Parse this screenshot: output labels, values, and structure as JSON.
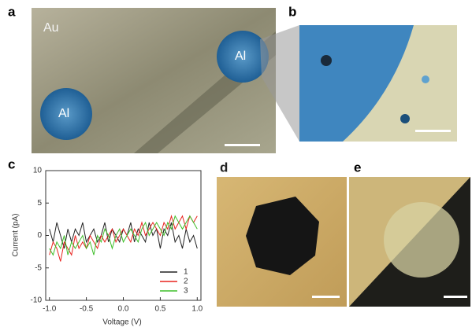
{
  "figure": {
    "panel_labels": [
      "a",
      "b",
      "c",
      "d",
      "e"
    ],
    "panel_a_texts": [
      "Au",
      "Al",
      "Al"
    ]
  },
  "chart_data": {
    "type": "line",
    "xlabel": "Voltage (V)",
    "ylabel": "Current (pA)",
    "x": [
      -1.0,
      -0.95,
      -0.9,
      -0.85,
      -0.8,
      -0.75,
      -0.7,
      -0.65,
      -0.6,
      -0.55,
      -0.5,
      -0.45,
      -0.4,
      -0.35,
      -0.3,
      -0.25,
      -0.2,
      -0.15,
      -0.1,
      -0.05,
      0.0,
      0.05,
      0.1,
      0.15,
      0.2,
      0.25,
      0.3,
      0.35,
      0.4,
      0.45,
      0.5,
      0.55,
      0.6,
      0.65,
      0.7,
      0.75,
      0.8,
      0.85,
      0.9,
      0.95,
      1.0
    ],
    "series": [
      {
        "name": "1",
        "color": "#222222",
        "values": [
          1,
          -1,
          2,
          0,
          -2,
          1,
          -1,
          1,
          0,
          2,
          -1,
          0,
          1,
          -1,
          0,
          2,
          -1,
          1,
          0,
          -1,
          1,
          0,
          2,
          -1,
          1,
          0,
          -1,
          2,
          0,
          1,
          -2,
          1,
          0,
          2,
          -1,
          0,
          -2,
          1,
          -1,
          0,
          -2
        ]
      },
      {
        "name": "2",
        "color": "#e8231f",
        "values": [
          -3,
          -1,
          -2,
          -4,
          -1,
          -2,
          -3,
          0,
          -2,
          -1,
          -2,
          0,
          -1,
          -2,
          0,
          -1,
          0,
          1,
          -1,
          0,
          1,
          0,
          -1,
          1,
          0,
          2,
          0,
          1,
          2,
          1,
          0,
          2,
          1,
          3,
          1,
          2,
          3,
          1,
          3,
          2,
          3
        ]
      },
      {
        "name": "3",
        "color": "#3fbf2a",
        "values": [
          -2,
          -3,
          -1,
          -2,
          0,
          -3,
          -1,
          -2,
          -1,
          0,
          -2,
          -1,
          -3,
          0,
          -1,
          1,
          0,
          -2,
          0,
          1,
          -1,
          0,
          1,
          0,
          -1,
          1,
          2,
          0,
          1,
          2,
          1,
          0,
          2,
          1,
          3,
          2,
          1,
          2,
          3,
          2,
          1
        ]
      }
    ],
    "xlim": [
      -1.05,
      1.05
    ],
    "xticks": [
      {
        "value": -1,
        "label": "-1.0"
      },
      -0.5,
      {
        "value": 0,
        "label": "0.0"
      },
      0.5,
      {
        "value": 1,
        "label": "1.0"
      }
    ],
    "ylim": [
      -10,
      10
    ],
    "yticks": [
      -10,
      -5,
      0,
      5,
      10
    ],
    "legend": "lower right"
  }
}
